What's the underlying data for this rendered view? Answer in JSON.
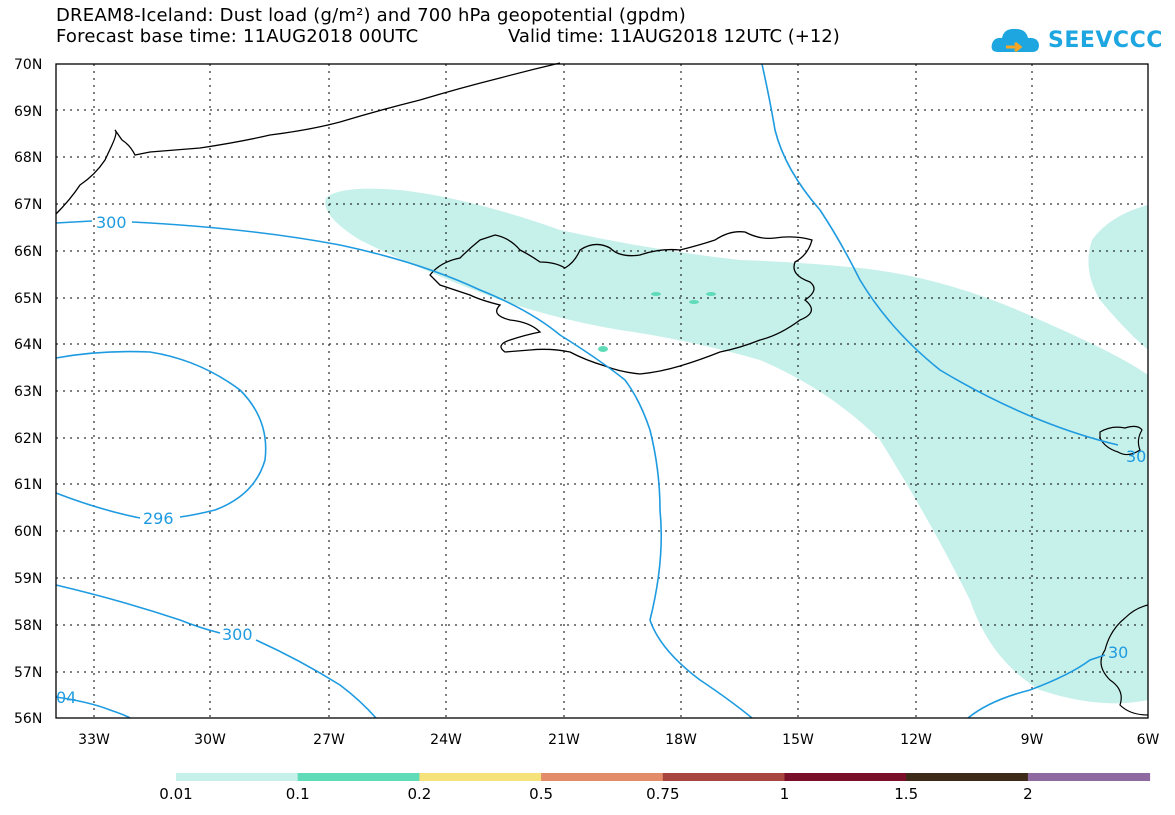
{
  "header": {
    "title_line1": "DREAM8-Iceland: Dust load (g/m²) and 700 hPa geopotential (gpdm)",
    "title_line2": "Forecast base time: 11AUG2018 00UTC",
    "valid_time": "Valid time: 11AUG2018 12UTC (+12)",
    "logo_text": "SEEVCCC"
  },
  "map": {
    "lat_labels": [
      "70N",
      "69N",
      "68N",
      "67N",
      "66N",
      "65N",
      "64N",
      "63N",
      "62N",
      "61N",
      "60N",
      "59N",
      "58N",
      "57N",
      "56N"
    ],
    "lon_labels": [
      "33W",
      "30W",
      "27W",
      "24W",
      "21W",
      "18W",
      "15W",
      "12W",
      "9W",
      "6W"
    ],
    "contour_labels": [
      "300",
      "296",
      "300",
      "04",
      "30",
      "30"
    ],
    "colors": {
      "dust_low": "#c6f0ea",
      "dust_mid": "#5fdbb8",
      "contour": "#1e9be0"
    }
  },
  "colorbar": {
    "labels": [
      "0.01",
      "0.1",
      "0.2",
      "0.5",
      "0.75",
      "1",
      "1.5",
      "2"
    ],
    "colors": [
      "#c6f0ea",
      "#5fdbb8",
      "#f6e27a",
      "#e28c6a",
      "#a8453f",
      "#7a0f2a",
      "#3d2a18",
      "#8e6aa0"
    ]
  }
}
